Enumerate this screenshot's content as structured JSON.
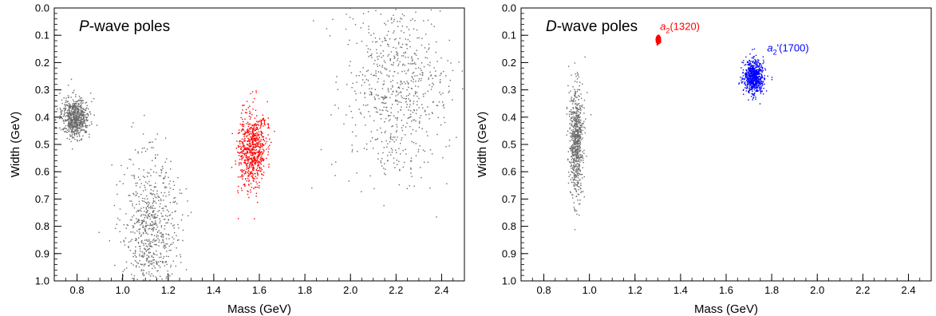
{
  "chart_data": [
    {
      "type": "scatter",
      "title_italic": "P",
      "title_rest": "-wave poles",
      "xlabel": "Mass (GeV)",
      "ylabel": "Width (GeV)",
      "xlim": [
        0.7,
        2.5
      ],
      "ylim": [
        0.0,
        1.0
      ],
      "y_inverted": true,
      "x_ticks": [
        "0.8",
        "1.0",
        "1.2",
        "1.4",
        "1.6",
        "1.8",
        "2.0",
        "2.2",
        "2.4"
      ],
      "y_ticks": [
        "0.0",
        "0.1",
        "0.2",
        "0.3",
        "0.4",
        "0.5",
        "0.6",
        "0.7",
        "0.8",
        "0.9",
        "1.0"
      ],
      "clusters": [
        {
          "color": "#6b6b6b",
          "cx": 0.79,
          "cy": 0.4,
          "sx": 0.03,
          "sy": 0.035
        },
        {
          "color": "#6b6b6b",
          "cx": 1.12,
          "cy": 0.8,
          "sx": 0.06,
          "sy": 0.13
        },
        {
          "color": "#6b6b6b",
          "cx": 2.2,
          "cy": 0.3,
          "sx": 0.11,
          "sy": 0.17
        },
        {
          "color": "#ff0000",
          "cx": 1.565,
          "cy": 0.52,
          "sx": 0.03,
          "sy": 0.07
        }
      ],
      "annotations": [
        {
          "base": "π",
          "sub": "1",
          "x": 1.6,
          "y": 0.43,
          "color": "#ff0000"
        }
      ]
    },
    {
      "type": "scatter",
      "title_italic": "D",
      "title_rest": "-wave poles",
      "xlabel": "Mass (GeV)",
      "ylabel": "Width (GeV)",
      "xlim": [
        0.7,
        2.5
      ],
      "ylim": [
        0.0,
        1.0
      ],
      "y_inverted": true,
      "x_ticks": [
        "0.8",
        "1.0",
        "1.2",
        "1.4",
        "1.6",
        "1.8",
        "2.0",
        "2.2",
        "2.4"
      ],
      "y_ticks": [
        "0.0",
        "0.1",
        "0.2",
        "0.3",
        "0.4",
        "0.5",
        "0.6",
        "0.7",
        "0.8",
        "0.9",
        "1.0"
      ],
      "clusters": [
        {
          "color": "#6b6b6b",
          "cx": 0.94,
          "cy": 0.48,
          "sx": 0.015,
          "sy": 0.1
        },
        {
          "color": "#ff0000",
          "cx": 1.3,
          "cy": 0.115,
          "sx": 0.004,
          "sy": 0.006
        },
        {
          "color": "#0000ff",
          "cx": 1.72,
          "cy": 0.25,
          "sx": 0.022,
          "sy": 0.03
        }
      ],
      "annotations": [
        {
          "base": "a",
          "sub": "2",
          "tail": "(1320)",
          "x": 1.31,
          "y": 0.08,
          "color": "#ff0000"
        },
        {
          "base": "a",
          "sub": "2",
          "tail": "'(1700)",
          "x": 1.78,
          "y": 0.16,
          "color": "#0000ff"
        }
      ]
    }
  ]
}
